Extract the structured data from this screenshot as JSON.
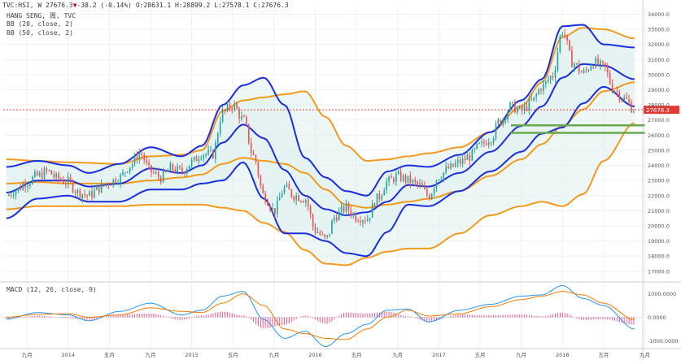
{
  "header": {
    "symbol": "TVC:HSI, W",
    "close": "27676.3",
    "arrow": "▼",
    "change": "-38.2 (-0.14%)",
    "ohlc": "O:28631.1 H:28899.2 L:27578.1 C:27676.3"
  },
  "indicators": {
    "name": "HANG SENG, 周, TVC",
    "bb1": "BB (20, close, 2)",
    "bb2": "BB (50, close, 2)",
    "macd": "MACD (12, 26, close, 9)"
  },
  "colors": {
    "bb20": "#1a2ee0",
    "bb50": "#f29a1e",
    "bb_fill": "#dff0ee",
    "support": "#6aa84f",
    "candle_up": "#26a69a",
    "candle_down": "#ef5350",
    "macd": "#2196f3",
    "signal": "#f57c00",
    "hist": "#e91e63",
    "last_price": "#e53935"
  },
  "chart_data": [
    {
      "type": "candlestick",
      "title": "HANG SENG, 周, TVC",
      "y_axis_side": "right",
      "ylim": [
        16400,
        34400
      ],
      "yticks": [
        "34000.0",
        "33000.0",
        "32000.0",
        "31000.0",
        "30000.0",
        "29000.0",
        "28000.0",
        "27000.0",
        "26000.0",
        "25000.0",
        "24000.0",
        "23000.0",
        "22000.0",
        "21000.0",
        "20000.0",
        "19000.0",
        "18000.0",
        "17000.0"
      ],
      "last_price_label": "27676.3",
      "last_price": 27676.3,
      "x_period_start": "2013-07",
      "x_period_end": "2018-08",
      "x_tick_labels": [
        "九月",
        "2014",
        "五月",
        "九月",
        "2015",
        "五月",
        "九月",
        "2016",
        "五月",
        "九月",
        "2017",
        "五月",
        "九月",
        "2018",
        "五月",
        "九月"
      ],
      "x_tick_dates": [
        "2013-09",
        "2014-01",
        "2014-05",
        "2014-09",
        "2015-01",
        "2015-05",
        "2015-09",
        "2016-01",
        "2016-05",
        "2016-09",
        "2017-01",
        "2017-05",
        "2017-09",
        "2018-01",
        "2018-05",
        "2018-09"
      ],
      "close_path": [
        [
          "2013-07",
          22000
        ],
        [
          "2013-08",
          22400
        ],
        [
          "2013-09",
          22900
        ],
        [
          "2013-10",
          23300
        ],
        [
          "2013-11",
          23600
        ],
        [
          "2013-12",
          23100
        ],
        [
          "2014-01",
          22900
        ],
        [
          "2014-02",
          22200
        ],
        [
          "2014-03",
          22000
        ],
        [
          "2014-04",
          22500
        ],
        [
          "2014-05",
          22900
        ],
        [
          "2014-06",
          23200
        ],
        [
          "2014-07",
          24000
        ],
        [
          "2014-08",
          24800
        ],
        [
          "2014-09",
          23600
        ],
        [
          "2014-10",
          23200
        ],
        [
          "2014-11",
          23800
        ],
        [
          "2014-12",
          23600
        ],
        [
          "2015-01",
          24200
        ],
        [
          "2015-02",
          24800
        ],
        [
          "2015-03",
          24700
        ],
        [
          "2015-04",
          27500
        ],
        [
          "2015-05",
          28000
        ],
        [
          "2015-06",
          27000
        ],
        [
          "2015-07",
          24600
        ],
        [
          "2015-08",
          22000
        ],
        [
          "2015-09",
          21000
        ],
        [
          "2015-10",
          22500
        ],
        [
          "2015-11",
          22000
        ],
        [
          "2015-12",
          21800
        ],
        [
          "2016-01",
          19700
        ],
        [
          "2016-02",
          19100
        ],
        [
          "2016-03",
          20700
        ],
        [
          "2016-04",
          21200
        ],
        [
          "2016-05",
          20600
        ],
        [
          "2016-06",
          20500
        ],
        [
          "2016-07",
          21800
        ],
        [
          "2016-08",
          22900
        ],
        [
          "2016-09",
          23300
        ],
        [
          "2016-10",
          23000
        ],
        [
          "2016-11",
          22700
        ],
        [
          "2016-12",
          22000
        ],
        [
          "2017-01",
          23300
        ],
        [
          "2017-02",
          23800
        ],
        [
          "2017-03",
          24200
        ],
        [
          "2017-04",
          24600
        ],
        [
          "2017-05",
          25300
        ],
        [
          "2017-06",
          25800
        ],
        [
          "2017-07",
          27000
        ],
        [
          "2017-08",
          27900
        ],
        [
          "2017-09",
          27600
        ],
        [
          "2017-10",
          28200
        ],
        [
          "2017-11",
          29200
        ],
        [
          "2017-12",
          29900
        ],
        [
          "2018-01",
          32900
        ],
        [
          "2018-02",
          30800
        ],
        [
          "2018-03",
          30100
        ],
        [
          "2018-04",
          30800
        ],
        [
          "2018-05",
          30500
        ],
        [
          "2018-06",
          29000
        ],
        [
          "2018-07",
          28400
        ],
        [
          "2018-08",
          27676.3
        ]
      ],
      "bb20_upper": [
        [
          "2013-07",
          23900
        ],
        [
          "2013-10",
          24300
        ],
        [
          "2014-01",
          24000
        ],
        [
          "2014-03",
          23500
        ],
        [
          "2014-06",
          24100
        ],
        [
          "2014-09",
          25200
        ],
        [
          "2014-12",
          24600
        ],
        [
          "2015-02",
          25300
        ],
        [
          "2015-04",
          28000
        ],
        [
          "2015-06",
          29300
        ],
        [
          "2015-08",
          29800
        ],
        [
          "2015-10",
          28000
        ],
        [
          "2015-12",
          24500
        ],
        [
          "2016-02",
          23200
        ],
        [
          "2016-04",
          22300
        ],
        [
          "2016-06",
          22000
        ],
        [
          "2016-08",
          23600
        ],
        [
          "2016-10",
          24000
        ],
        [
          "2016-12",
          23900
        ],
        [
          "2017-03",
          24700
        ],
        [
          "2017-06",
          26200
        ],
        [
          "2017-09",
          28300
        ],
        [
          "2017-11",
          29700
        ],
        [
          "2018-01",
          33200
        ],
        [
          "2018-03",
          33300
        ],
        [
          "2018-05",
          32000
        ],
        [
          "2018-08",
          31800
        ]
      ],
      "bb20_mid": [
        [
          "2013-07",
          22200
        ],
        [
          "2013-10",
          23000
        ],
        [
          "2014-01",
          23000
        ],
        [
          "2014-03",
          22600
        ],
        [
          "2014-06",
          22800
        ],
        [
          "2014-09",
          23800
        ],
        [
          "2014-12",
          23500
        ],
        [
          "2015-02",
          24000
        ],
        [
          "2015-04",
          25500
        ],
        [
          "2015-06",
          26700
        ],
        [
          "2015-08",
          25800
        ],
        [
          "2015-10",
          23700
        ],
        [
          "2015-12",
          22000
        ],
        [
          "2016-02",
          21100
        ],
        [
          "2016-04",
          20700
        ],
        [
          "2016-06",
          20900
        ],
        [
          "2016-08",
          21600
        ],
        [
          "2016-10",
          22700
        ],
        [
          "2016-12",
          22600
        ],
        [
          "2017-03",
          23500
        ],
        [
          "2017-06",
          24900
        ],
        [
          "2017-09",
          26600
        ],
        [
          "2017-11",
          27900
        ],
        [
          "2018-01",
          29800
        ],
        [
          "2018-03",
          30700
        ],
        [
          "2018-05",
          30600
        ],
        [
          "2018-08",
          29700
        ]
      ],
      "bb20_lower": [
        [
          "2013-07",
          20500
        ],
        [
          "2013-10",
          21800
        ],
        [
          "2014-01",
          22000
        ],
        [
          "2014-03",
          21600
        ],
        [
          "2014-06",
          21600
        ],
        [
          "2014-09",
          22400
        ],
        [
          "2014-12",
          22400
        ],
        [
          "2015-02",
          22800
        ],
        [
          "2015-04",
          23000
        ],
        [
          "2015-06",
          24200
        ],
        [
          "2015-08",
          21800
        ],
        [
          "2015-10",
          19500
        ],
        [
          "2015-12",
          19500
        ],
        [
          "2016-02",
          19000
        ],
        [
          "2016-04",
          18200
        ],
        [
          "2016-06",
          18000
        ],
        [
          "2016-08",
          19600
        ],
        [
          "2016-10",
          21400
        ],
        [
          "2016-12",
          21300
        ],
        [
          "2017-03",
          22300
        ],
        [
          "2017-06",
          23600
        ],
        [
          "2017-09",
          24900
        ],
        [
          "2017-11",
          26100
        ],
        [
          "2018-01",
          26500
        ],
        [
          "2018-03",
          28100
        ],
        [
          "2018-05",
          29200
        ],
        [
          "2018-08",
          27900
        ]
      ],
      "bb50_upper": [
        [
          "2013-07",
          24400
        ],
        [
          "2013-10",
          24300
        ],
        [
          "2014-01",
          24200
        ],
        [
          "2014-06",
          24100
        ],
        [
          "2014-09",
          24600
        ],
        [
          "2014-12",
          24700
        ],
        [
          "2015-02",
          25000
        ],
        [
          "2015-04",
          27600
        ],
        [
          "2015-06",
          28300
        ],
        [
          "2015-08",
          28500
        ],
        [
          "2015-10",
          28700
        ],
        [
          "2015-12",
          28900
        ],
        [
          "2016-02",
          27200
        ],
        [
          "2016-04",
          25300
        ],
        [
          "2016-06",
          24300
        ],
        [
          "2016-08",
          24400
        ],
        [
          "2016-10",
          24600
        ],
        [
          "2016-12",
          24800
        ],
        [
          "2017-03",
          25200
        ],
        [
          "2017-06",
          26200
        ],
        [
          "2017-09",
          27900
        ],
        [
          "2017-11",
          29500
        ],
        [
          "2018-01",
          32500
        ],
        [
          "2018-03",
          33100
        ],
        [
          "2018-05",
          33000
        ],
        [
          "2018-08",
          32400
        ]
      ],
      "bb50_mid": [
        [
          "2013-07",
          22800
        ],
        [
          "2013-10",
          22900
        ],
        [
          "2014-01",
          22800
        ],
        [
          "2014-06",
          22800
        ],
        [
          "2014-09",
          23000
        ],
        [
          "2014-12",
          23200
        ],
        [
          "2015-02",
          23400
        ],
        [
          "2015-04",
          24100
        ],
        [
          "2015-06",
          24500
        ],
        [
          "2015-08",
          24300
        ],
        [
          "2015-10",
          24100
        ],
        [
          "2015-12",
          23500
        ],
        [
          "2016-02",
          22400
        ],
        [
          "2016-04",
          21400
        ],
        [
          "2016-06",
          21200
        ],
        [
          "2016-08",
          21400
        ],
        [
          "2016-10",
          21600
        ],
        [
          "2016-12",
          21800
        ],
        [
          "2017-03",
          22300
        ],
        [
          "2017-06",
          23300
        ],
        [
          "2017-09",
          24400
        ],
        [
          "2017-11",
          25400
        ],
        [
          "2018-01",
          26600
        ],
        [
          "2018-03",
          27700
        ],
        [
          "2018-05",
          28900
        ],
        [
          "2018-08",
          29500
        ]
      ],
      "bb50_lower": [
        [
          "2013-07",
          21100
        ],
        [
          "2013-10",
          21300
        ],
        [
          "2014-01",
          21300
        ],
        [
          "2014-06",
          21300
        ],
        [
          "2014-09",
          21400
        ],
        [
          "2014-12",
          21400
        ],
        [
          "2015-02",
          21400
        ],
        [
          "2015-04",
          21200
        ],
        [
          "2015-06",
          21000
        ],
        [
          "2015-08",
          20200
        ],
        [
          "2015-10",
          19600
        ],
        [
          "2015-12",
          18400
        ],
        [
          "2016-02",
          17500
        ],
        [
          "2016-04",
          17400
        ],
        [
          "2016-06",
          17900
        ],
        [
          "2016-08",
          18300
        ],
        [
          "2016-10",
          18500
        ],
        [
          "2016-12",
          18500
        ],
        [
          "2017-03",
          19500
        ],
        [
          "2017-06",
          20700
        ],
        [
          "2017-09",
          21300
        ],
        [
          "2017-11",
          21600
        ],
        [
          "2018-01",
          21300
        ],
        [
          "2018-03",
          22100
        ],
        [
          "2018-05",
          24300
        ],
        [
          "2018-08",
          26800
        ]
      ],
      "support_lines": [
        {
          "from": [
            "2017-08",
            26650
          ],
          "to": [
            "2018-09",
            26650
          ]
        },
        {
          "from": [
            "2017-08",
            26150
          ],
          "to": [
            "2018-09",
            26150
          ]
        }
      ]
    },
    {
      "type": "macd",
      "title": "MACD (12, 26, close, 9)",
      "y_axis_side": "right",
      "ylim": [
        -1300,
        1400
      ],
      "yticks": [
        "1000.0000",
        "0.0000",
        "-1000.0000"
      ],
      "macd": [
        [
          "2013-07",
          -80
        ],
        [
          "2013-10",
          200
        ],
        [
          "2014-01",
          100
        ],
        [
          "2014-03",
          -150
        ],
        [
          "2014-06",
          250
        ],
        [
          "2014-09",
          600
        ],
        [
          "2014-12",
          100
        ],
        [
          "2015-02",
          300
        ],
        [
          "2015-04",
          900
        ],
        [
          "2015-06",
          1100
        ],
        [
          "2015-08",
          -100
        ],
        [
          "2015-10",
          -900
        ],
        [
          "2015-12",
          -600
        ],
        [
          "2016-02",
          -1250
        ],
        [
          "2016-04",
          -700
        ],
        [
          "2016-06",
          -300
        ],
        [
          "2016-08",
          300
        ],
        [
          "2016-10",
          350
        ],
        [
          "2016-12",
          -200
        ],
        [
          "2017-03",
          300
        ],
        [
          "2017-06",
          550
        ],
        [
          "2017-09",
          900
        ],
        [
          "2017-11",
          950
        ],
        [
          "2018-01",
          1350
        ],
        [
          "2018-03",
          800
        ],
        [
          "2018-05",
          500
        ],
        [
          "2018-08",
          -500
        ]
      ],
      "signal": [
        [
          "2013-07",
          0
        ],
        [
          "2013-10",
          120
        ],
        [
          "2014-01",
          150
        ],
        [
          "2014-03",
          0
        ],
        [
          "2014-06",
          100
        ],
        [
          "2014-09",
          400
        ],
        [
          "2014-12",
          250
        ],
        [
          "2015-02",
          200
        ],
        [
          "2015-04",
          600
        ],
        [
          "2015-06",
          1000
        ],
        [
          "2015-08",
          500
        ],
        [
          "2015-10",
          -500
        ],
        [
          "2015-12",
          -700
        ],
        [
          "2016-02",
          -900
        ],
        [
          "2016-04",
          -950
        ],
        [
          "2016-06",
          -500
        ],
        [
          "2016-08",
          0
        ],
        [
          "2016-10",
          300
        ],
        [
          "2016-12",
          50
        ],
        [
          "2017-03",
          150
        ],
        [
          "2017-06",
          450
        ],
        [
          "2017-09",
          750
        ],
        [
          "2017-11",
          900
        ],
        [
          "2018-01",
          1100
        ],
        [
          "2018-03",
          950
        ],
        [
          "2018-05",
          600
        ],
        [
          "2018-08",
          -100
        ]
      ]
    }
  ]
}
